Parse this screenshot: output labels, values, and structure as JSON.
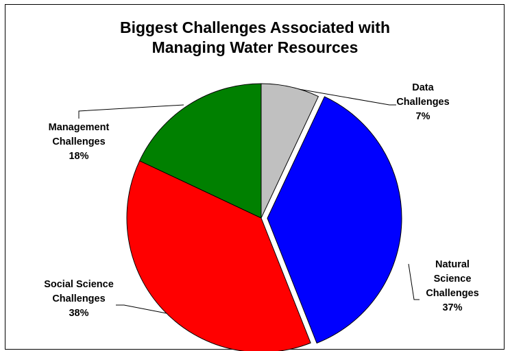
{
  "chart_data": {
    "type": "pie",
    "title": "Biggest Challenges Associated with Managing Water Resources",
    "title_lines": [
      "Biggest Challenges Associated with",
      "Managing Water Resources"
    ],
    "start_angle_deg": 0,
    "direction": "clockwise",
    "legend": "none",
    "slices": [
      {
        "key": "data",
        "label_lines": [
          "Data",
          "Challenges"
        ],
        "value": 7,
        "value_label": "7%",
        "color": "#c0c0c0",
        "exploded": false
      },
      {
        "key": "natural",
        "label_lines": [
          "Natural",
          "Science",
          "Challenges"
        ],
        "value": 37,
        "value_label": "37%",
        "color": "#0000ff",
        "exploded": true
      },
      {
        "key": "social",
        "label_lines": [
          "Social Science",
          "Challenges"
        ],
        "value": 38,
        "value_label": "38%",
        "color": "#ff0000",
        "exploded": false
      },
      {
        "key": "management",
        "label_lines": [
          "Management",
          "Challenges"
        ],
        "value": 18,
        "value_label": "18%",
        "color": "#008000",
        "exploded": false
      }
    ]
  }
}
